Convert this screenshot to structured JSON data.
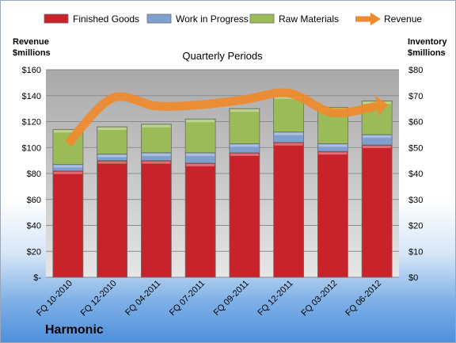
{
  "chart_data": {
    "type": "bar",
    "stacked": true,
    "title": "Quarterly Periods",
    "brand": "Harmonic",
    "categories": [
      "FQ 10-2010",
      "FQ 12-2010",
      "FQ 04-2011",
      "FQ 07-2011",
      "FQ 09-2011",
      "FQ 12-2011",
      "FQ 03-2012",
      "FQ 06-2012"
    ],
    "series": [
      {
        "name": "Finished Goods",
        "color": "#c8222a",
        "axis": "right",
        "values": [
          41,
          45,
          45,
          44,
          48,
          52,
          48.5,
          51
        ]
      },
      {
        "name": "Work in Progress",
        "color": "#7f9fcf",
        "axis": "right",
        "values": [
          2.5,
          2.5,
          3,
          4,
          3.5,
          4,
          3,
          4
        ]
      },
      {
        "name": "Raw Materials",
        "color": "#9bbb59",
        "axis": "right",
        "values": [
          13.5,
          10.5,
          11,
          13,
          13.5,
          14,
          14,
          13
        ]
      }
    ],
    "line_series": {
      "name": "Revenue",
      "color": "#f08a2c",
      "axis": "left",
      "values": [
        103,
        138,
        132,
        133,
        137,
        142,
        127,
        132
      ]
    },
    "left_axis": {
      "title_line1": "Revenue",
      "title_line2": "$millions",
      "min": 0,
      "max": 160,
      "step": 20,
      "ticks": [
        "$-",
        "$20",
        "$40",
        "$60",
        "$80",
        "$100",
        "$120",
        "$140",
        "$160"
      ]
    },
    "right_axis": {
      "title_line1": "Inventory",
      "title_line2": "$millions",
      "min": 0,
      "max": 80,
      "step": 10,
      "ticks": [
        "$0",
        "$10",
        "$20",
        "$30",
        "$40",
        "$50",
        "$60",
        "$70",
        "$80"
      ]
    },
    "grid": true,
    "legend": "top"
  }
}
